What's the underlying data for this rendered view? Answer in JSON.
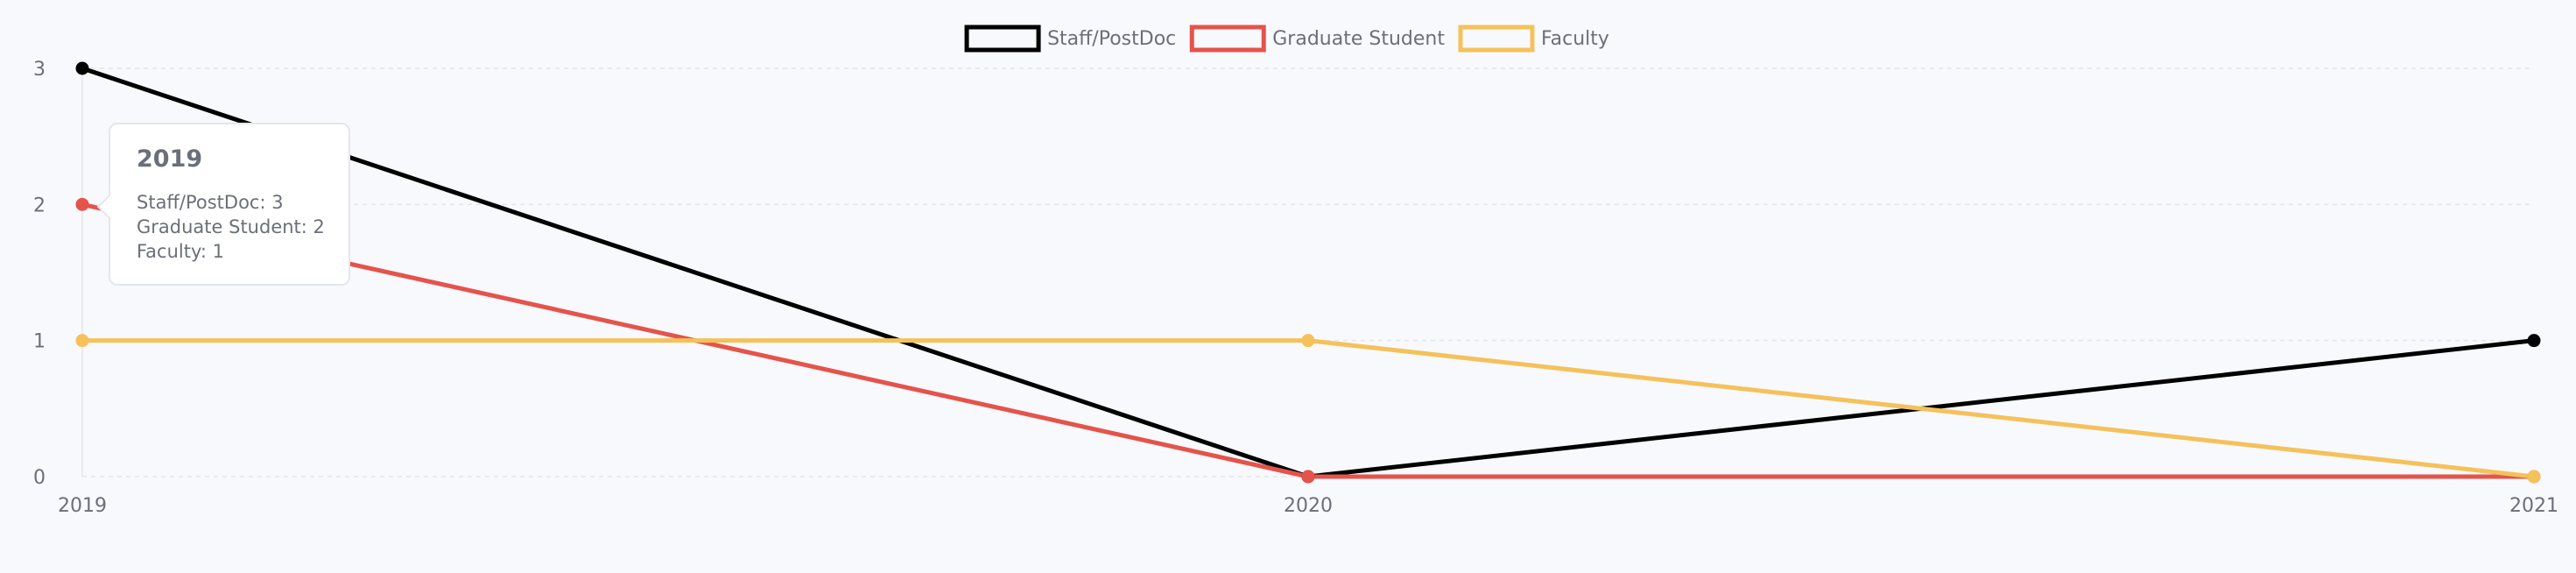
{
  "chart_data": {
    "type": "line",
    "categories": [
      "2019",
      "2020",
      "2021"
    ],
    "series": [
      {
        "name": "Staff/PostDoc",
        "values": [
          3,
          0,
          1
        ],
        "color": "#000000"
      },
      {
        "name": "Graduate Student",
        "values": [
          2,
          0,
          0
        ],
        "color": "#e5534b"
      },
      {
        "name": "Faculty",
        "values": [
          1,
          1,
          0
        ],
        "color": "#f5c15a"
      }
    ],
    "y_ticks": [
      "0",
      "1",
      "2",
      "3"
    ],
    "ylim": [
      0,
      3
    ],
    "grid": true,
    "legend_placement": "top-center",
    "tooltip": {
      "title": "2019",
      "lines": [
        "Staff/PostDoc: 3",
        "Graduate Student: 2",
        "Faculty: 1"
      ]
    }
  }
}
